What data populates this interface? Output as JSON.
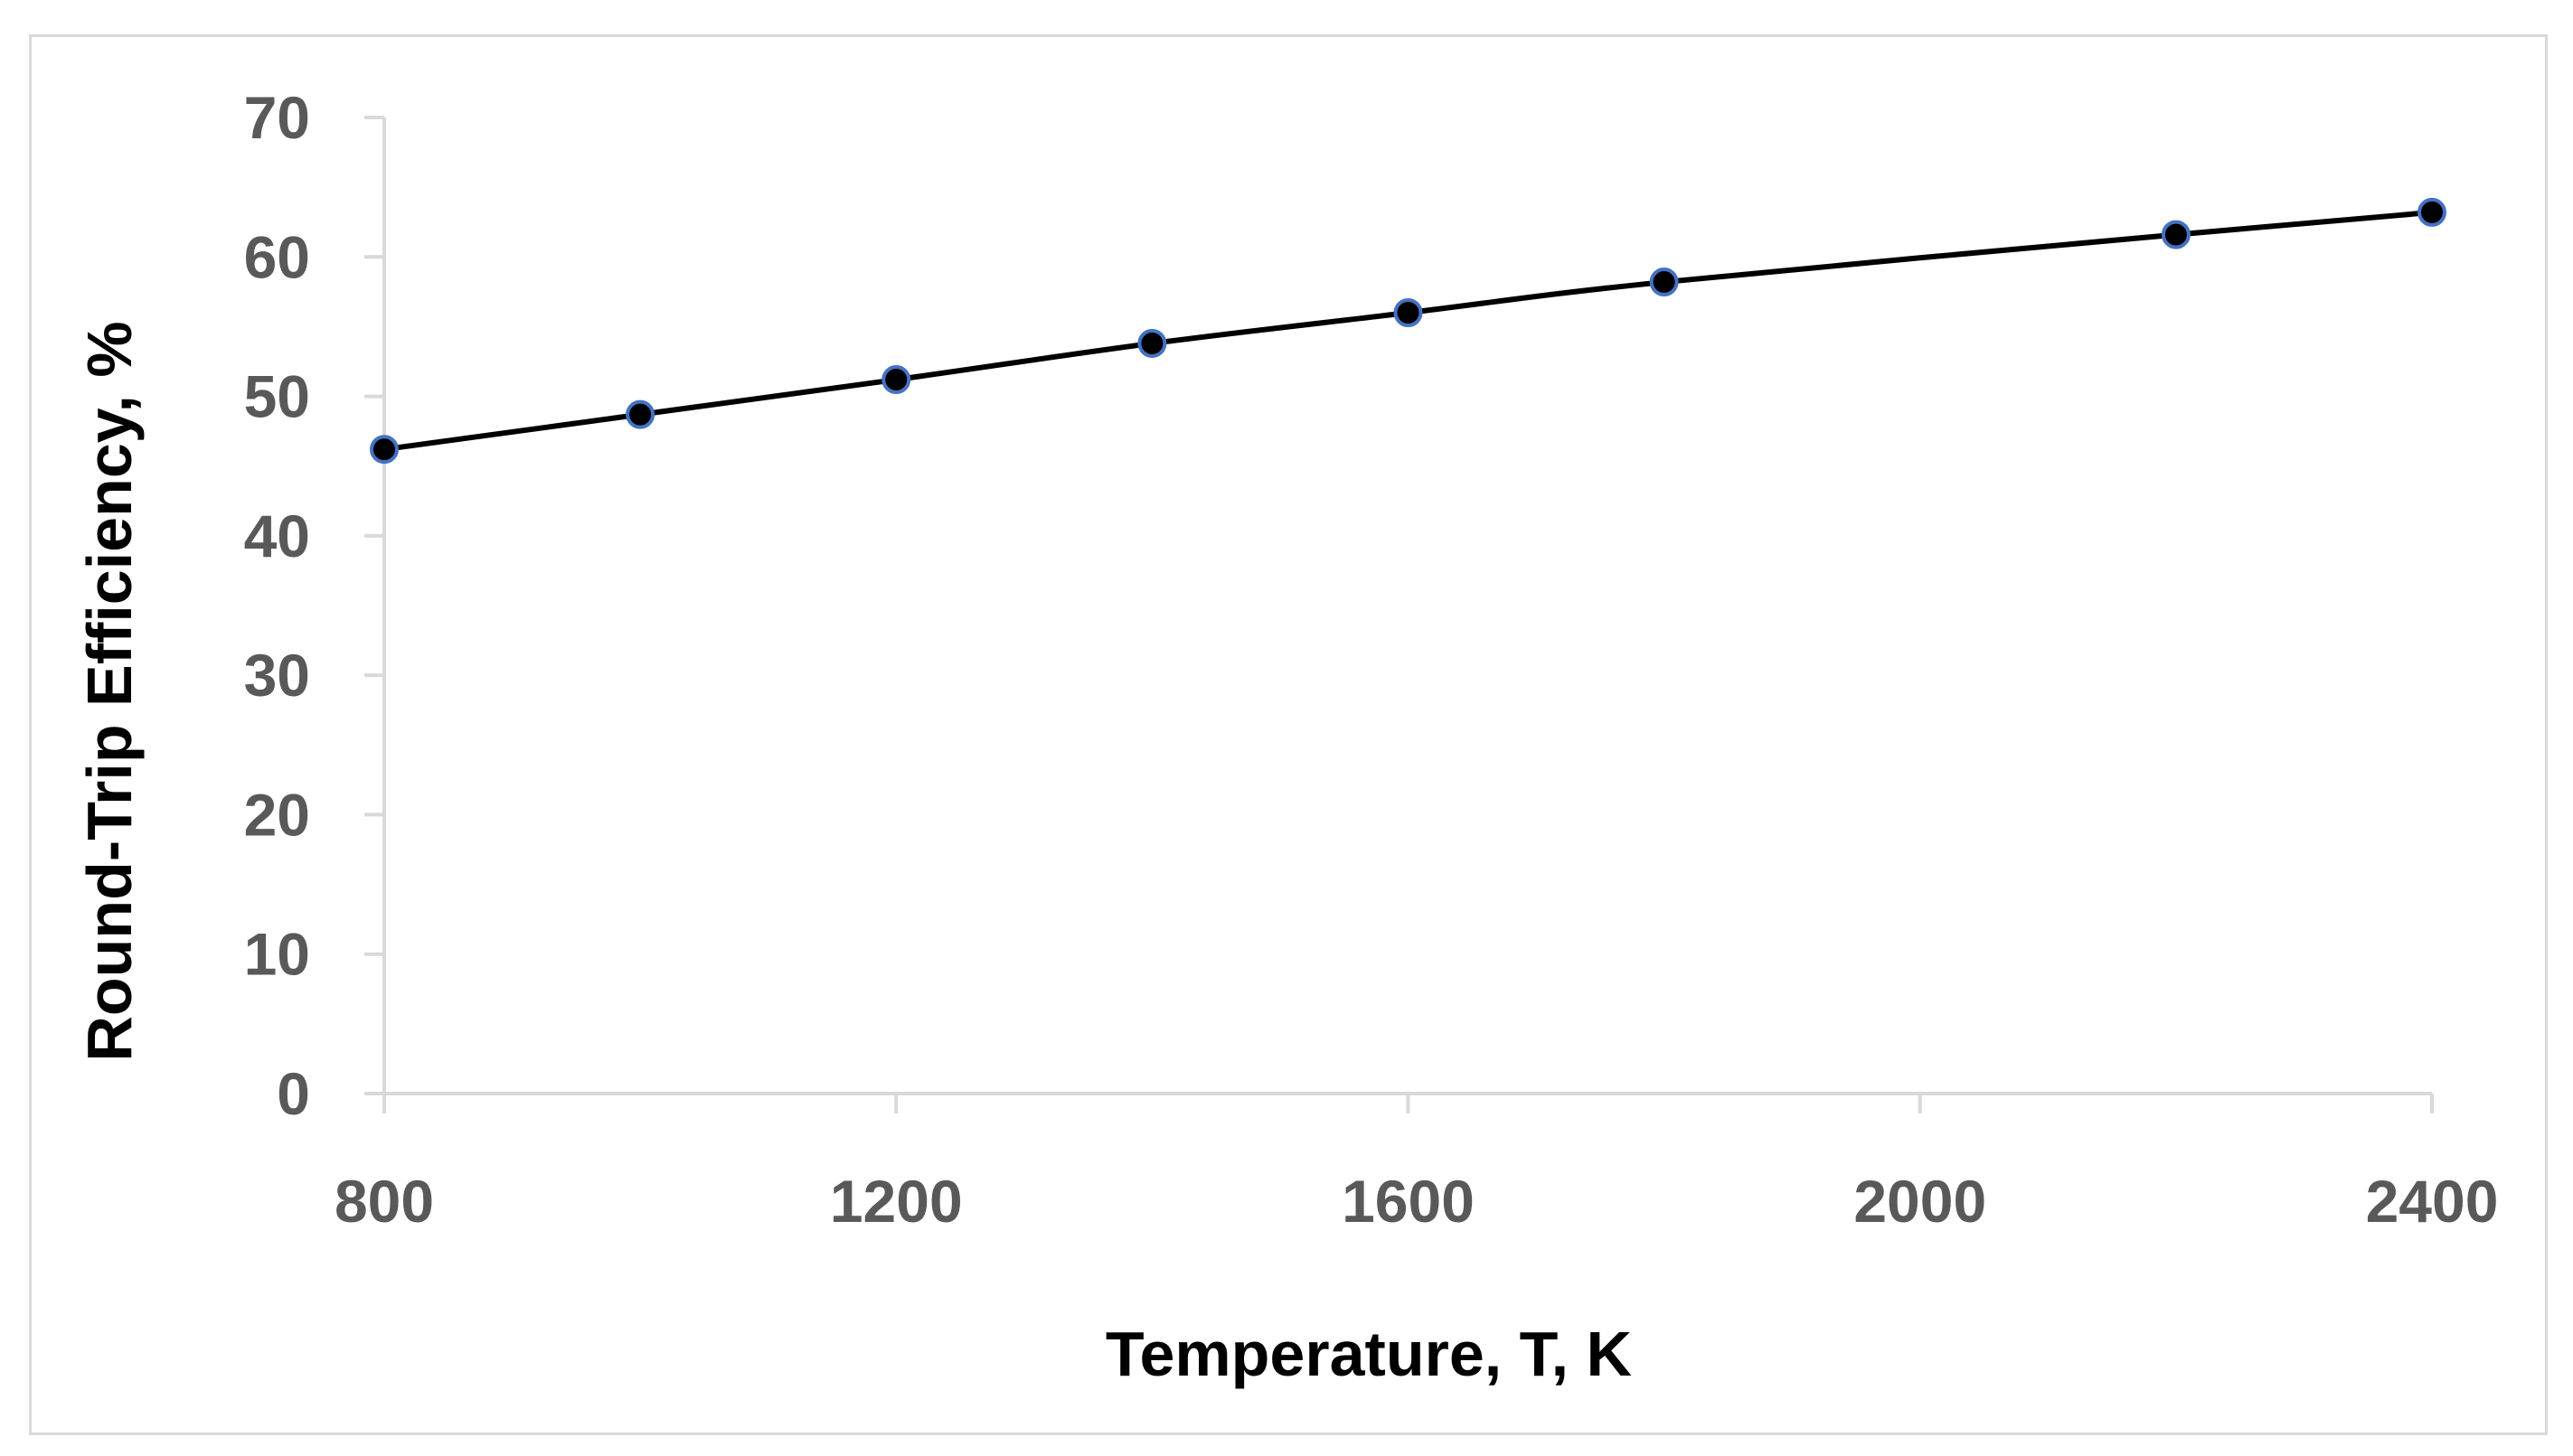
{
  "chart_data": {
    "type": "line",
    "xlabel": "Temperature, T, K",
    "ylabel": "Round-Trip Efficiency, %",
    "xlim": [
      800,
      2400
    ],
    "ylim": [
      0,
      70
    ],
    "x_ticks": [
      800,
      1200,
      1600,
      2000,
      2400
    ],
    "y_ticks": [
      0,
      10,
      20,
      30,
      40,
      50,
      60,
      70
    ],
    "grid": false,
    "legend": "none",
    "series": [
      {
        "x": [
          800,
          1000,
          1200,
          1400,
          1600,
          1800,
          2200,
          2400
        ],
        "y": [
          46.2,
          48.7,
          51.2,
          53.8,
          56.0,
          58.2,
          61.6,
          63.2
        ],
        "line_color": "#000000",
        "marker_fill": "#000000",
        "marker_edge": "#4472c4"
      }
    ],
    "axis_color": "#d9d9d9",
    "tick_label_color": "#595959"
  }
}
